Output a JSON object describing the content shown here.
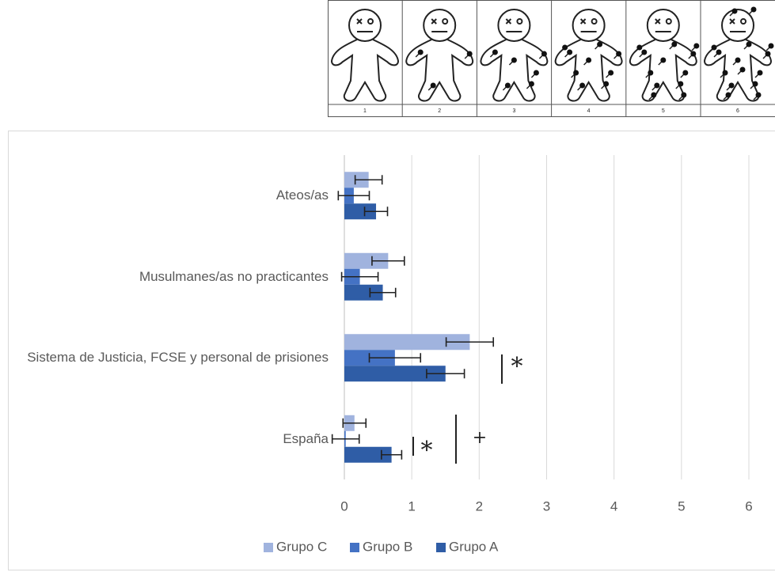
{
  "image_panel": {
    "labels": [
      "1",
      "2",
      "3",
      "4",
      "5",
      "6"
    ]
  },
  "chart_data": {
    "type": "bar",
    "orientation": "horizontal",
    "categories": [
      "Ateos/as",
      "Musulmanes/as no practicantes",
      "Sistema de Justicia, FCSE y personal de prisiones",
      "España"
    ],
    "series": [
      {
        "name": "Grupo C",
        "color": "#a0b3de",
        "values": [
          0.36,
          0.65,
          1.86,
          0.15
        ],
        "errors": [
          0.2,
          0.24,
          0.35,
          0.17
        ]
      },
      {
        "name": "Grupo B",
        "color": "#4472c4",
        "values": [
          0.14,
          0.23,
          0.75,
          0.02
        ],
        "errors": [
          0.23,
          0.27,
          0.38,
          0.2
        ]
      },
      {
        "name": "Grupo A",
        "color": "#2f5da6",
        "values": [
          0.47,
          0.57,
          1.5,
          0.7
        ],
        "errors": [
          0.17,
          0.19,
          0.28,
          0.15
        ]
      }
    ],
    "xlim": [
      0,
      6
    ],
    "xticks": [
      0,
      1,
      2,
      3,
      4,
      5,
      6
    ],
    "grid": true,
    "legend": "bottom",
    "annotations": [
      "*",
      "*",
      "+"
    ]
  }
}
